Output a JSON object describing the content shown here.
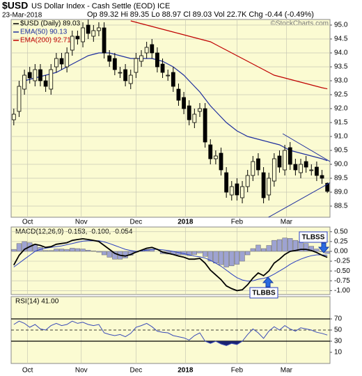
{
  "header": {
    "symbol": "$USD",
    "name": "US Dollar Index - Cash Settle (EOD) ICE",
    "date": "23-Mar-2018",
    "quote": "Op 89.32 Hi 89.35 Lo 88.97 Cl 89.03 Vol 22.7K Chg -0.44 (-0.49%)",
    "credit": "©StockCharts.com"
  },
  "chart_data": [
    {
      "type": "candlestick",
      "name": "$USD (Daily) 89.03",
      "xlim": [
        -0.5,
        59.5
      ],
      "xticks": [
        {
          "value": 2.6,
          "label": "Oct"
        },
        {
          "value": 12.7,
          "label": "Nov"
        },
        {
          "value": 23,
          "label": "Dec"
        },
        {
          "value": 32.3,
          "label": "2018"
        },
        {
          "value": 42,
          "label": "Feb"
        },
        {
          "value": 51.3,
          "label": "Mar"
        }
      ],
      "ylim": [
        88.1,
        95.2
      ],
      "yticks": [
        {
          "value": 95,
          "label": "95.0"
        },
        {
          "value": 94.5,
          "label": "94.5"
        },
        {
          "value": 94,
          "label": "94.0"
        },
        {
          "value": 93.5,
          "label": "93.5"
        },
        {
          "value": 93,
          "label": "93.0"
        },
        {
          "value": 92.5,
          "label": "92.5"
        },
        {
          "value": 92,
          "label": "92.0"
        },
        {
          "value": 91.5,
          "label": "91.5"
        },
        {
          "value": 91,
          "label": "91.0"
        },
        {
          "value": 90.5,
          "label": "90.5"
        },
        {
          "value": 90,
          "label": "90.0"
        },
        {
          "value": 89.5,
          "label": "89.5"
        },
        {
          "value": 89,
          "label": "89.0"
        },
        {
          "value": 88.5,
          "label": "88.5"
        }
      ],
      "grid": true,
      "open": [
        91.6,
        91.9,
        92.7,
        93.3,
        93.0,
        93.4,
        93.0,
        92.7,
        93.5,
        93.8,
        93.5,
        94.1,
        94.6,
        94.4,
        95.0,
        94.6,
        94.8,
        94.9,
        93.9,
        93.8,
        93.3,
        93.4,
        92.9,
        93.3,
        93.7,
        94.0,
        94.3,
        94.0,
        93.6,
        93.2,
        93.3,
        92.7,
        92.4,
        92.1,
        91.5,
        91.9,
        92.0,
        90.7,
        90.2,
        90.4,
        89.7,
        88.9,
        89.3,
        88.8,
        89.2,
        89.6,
        90.2,
        89.7,
        88.9,
        89.4,
        90.3,
        89.8,
        90.6,
        90.0,
        89.7,
        90.1,
        89.8,
        89.9,
        89.6,
        89.32
      ],
      "high": [
        92.0,
        93.0,
        93.4,
        93.5,
        93.6,
        93.6,
        93.2,
        93.6,
        94.0,
        94.0,
        94.2,
        94.8,
        94.8,
        95.1,
        95.2,
        95.0,
        95.1,
        95.1,
        94.1,
        94.0,
        93.5,
        93.6,
        93.4,
        94.0,
        94.1,
        94.4,
        94.5,
        94.2,
        93.8,
        93.4,
        93.5,
        92.9,
        92.6,
        92.3,
        92.0,
        92.2,
        92.2,
        90.9,
        90.5,
        90.6,
        89.9,
        89.4,
        89.5,
        89.4,
        89.8,
        90.3,
        90.4,
        89.9,
        89.7,
        90.4,
        90.5,
        90.7,
        90.8,
        90.2,
        90.2,
        90.3,
        90.0,
        90.1,
        89.8,
        89.35
      ],
      "low": [
        91.4,
        91.7,
        92.5,
        92.9,
        92.8,
        92.8,
        92.6,
        92.5,
        93.3,
        93.4,
        93.3,
        93.9,
        94.3,
        94.2,
        94.5,
        94.4,
        94.6,
        93.8,
        93.5,
        93.2,
        93.1,
        92.8,
        92.7,
        93.1,
        93.5,
        93.8,
        93.8,
        93.3,
        93.1,
        93.0,
        92.6,
        92.1,
        91.8,
        91.4,
        91.3,
        91.7,
        90.6,
        90.0,
        90.0,
        89.6,
        88.8,
        88.7,
        88.7,
        88.6,
        89.0,
        89.4,
        89.6,
        88.6,
        88.7,
        89.2,
        89.7,
        89.6,
        89.8,
        89.6,
        89.5,
        89.7,
        89.6,
        89.4,
        89.3,
        88.97
      ],
      "close": [
        91.8,
        92.8,
        93.2,
        93.1,
        93.4,
        93.0,
        92.8,
        93.4,
        93.8,
        93.6,
        94.0,
        94.6,
        94.5,
        94.9,
        94.7,
        94.8,
        94.9,
        94.0,
        93.7,
        93.4,
        93.3,
        93.0,
        93.2,
        93.8,
        93.9,
        94.2,
        94.0,
        93.5,
        93.3,
        93.2,
        92.8,
        92.3,
        92.0,
        91.6,
        91.8,
        92.0,
        90.8,
        90.2,
        90.3,
        89.8,
        89.0,
        89.2,
        88.9,
        89.2,
        89.6,
        90.1,
        89.8,
        88.8,
        89.5,
        90.2,
        89.9,
        90.5,
        90.0,
        89.8,
        90.0,
        89.9,
        89.8,
        89.6,
        89.5,
        89.03
      ],
      "series": [
        {
          "name": "EMA(50) 90.13",
          "color": "#1f2f9e",
          "values": [
            null,
            null,
            93.0,
            93.05,
            93.1,
            93.15,
            93.2,
            93.25,
            93.3,
            93.4,
            93.5,
            93.6,
            93.7,
            93.8,
            93.9,
            93.95,
            94.0,
            94.0,
            94.0,
            93.95,
            93.9,
            93.85,
            93.8,
            93.8,
            93.8,
            93.8,
            93.8,
            93.75,
            93.7,
            93.6,
            93.5,
            93.35,
            93.2,
            93.0,
            92.8,
            92.6,
            92.35,
            92.1,
            91.9,
            91.7,
            91.5,
            91.35,
            91.2,
            91.1,
            91.0,
            90.95,
            90.9,
            90.85,
            90.8,
            90.75,
            90.7,
            90.6,
            90.5,
            90.45,
            90.4,
            90.35,
            90.3,
            90.25,
            90.2,
            90.13
          ]
        },
        {
          "name": "EMA(200) 92.71",
          "color": "#c00000",
          "values": [
            null,
            null,
            null,
            null,
            null,
            null,
            null,
            null,
            null,
            null,
            null,
            null,
            null,
            null,
            null,
            null,
            null,
            null,
            null,
            null,
            null,
            null,
            95.15,
            95.1,
            95.05,
            95.0,
            94.95,
            94.9,
            94.85,
            94.8,
            94.75,
            94.7,
            94.65,
            94.6,
            94.55,
            94.5,
            94.45,
            94.4,
            94.3,
            94.2,
            94.1,
            94.0,
            93.9,
            93.8,
            93.7,
            93.6,
            93.5,
            93.4,
            93.3,
            93.2,
            93.15,
            93.1,
            93.05,
            93.0,
            92.95,
            92.9,
            92.85,
            92.8,
            92.75,
            92.71
          ]
        }
      ],
      "trendlines": [
        {
          "x": [
            50.6,
            59.5
          ],
          "y": [
            91.1,
            90.1
          ],
          "color": "#1f2f9e"
        },
        {
          "x": [
            47,
            59.5
          ],
          "y": [
            88.0,
            89.34
          ],
          "color": "#1f2f9e"
        }
      ]
    },
    {
      "type": "macd",
      "label": "MACD(12,26,9) -0.153, -0.100, -0.054",
      "ylim": [
        -1.1,
        0.62
      ],
      "yticks": [
        {
          "value": 0.5,
          "label": "0.50"
        },
        {
          "value": 0.25,
          "label": "0.25"
        },
        {
          "value": 0,
          "label": "0.00"
        },
        {
          "value": -0.25,
          "label": "-0.25"
        },
        {
          "value": -0.5,
          "label": "-0.50"
        },
        {
          "value": -0.75,
          "label": "-0.75"
        },
        {
          "value": -1,
          "label": "-1.00"
        }
      ],
      "macd": [
        -0.35,
        -0.1,
        0.05,
        0.12,
        0.18,
        0.15,
        0.1,
        0.12,
        0.18,
        0.2,
        0.22,
        0.28,
        0.3,
        0.32,
        0.3,
        0.28,
        0.25,
        0.15,
        0.05,
        -0.05,
        -0.1,
        -0.12,
        -0.08,
        -0.02,
        0.03,
        0.08,
        0.1,
        0.05,
        -0.02,
        -0.05,
        -0.08,
        -0.12,
        -0.15,
        -0.2,
        -0.2,
        -0.18,
        -0.3,
        -0.48,
        -0.6,
        -0.72,
        -0.88,
        -0.95,
        -1.0,
        -0.98,
        -0.85,
        -0.68,
        -0.55,
        -0.62,
        -0.5,
        -0.3,
        -0.2,
        -0.08,
        0.0,
        0.02,
        0.05,
        0.05,
        0.02,
        -0.03,
        -0.1,
        -0.153
      ],
      "signal": [
        -0.4,
        -0.3,
        -0.2,
        -0.1,
        0.0,
        0.05,
        0.08,
        0.1,
        0.12,
        0.14,
        0.17,
        0.2,
        0.23,
        0.26,
        0.27,
        0.27,
        0.27,
        0.24,
        0.2,
        0.15,
        0.1,
        0.05,
        0.02,
        0.0,
        0.01,
        0.03,
        0.05,
        0.05,
        0.04,
        0.02,
        0.0,
        -0.03,
        -0.06,
        -0.09,
        -0.12,
        -0.14,
        -0.17,
        -0.23,
        -0.3,
        -0.38,
        -0.48,
        -0.58,
        -0.67,
        -0.73,
        -0.76,
        -0.75,
        -0.71,
        -0.69,
        -0.65,
        -0.58,
        -0.5,
        -0.42,
        -0.33,
        -0.26,
        -0.2,
        -0.15,
        -0.11,
        -0.09,
        -0.09,
        -0.1
      ],
      "histogram": [
        0.05,
        0.2,
        0.25,
        0.22,
        0.18,
        0.1,
        0.02,
        0.02,
        0.06,
        0.06,
        0.05,
        0.08,
        0.07,
        0.06,
        0.03,
        0.01,
        -0.02,
        -0.09,
        -0.15,
        -0.2,
        -0.2,
        -0.17,
        -0.1,
        -0.02,
        0.02,
        0.05,
        0.05,
        0.0,
        -0.06,
        -0.07,
        -0.08,
        -0.09,
        -0.09,
        -0.11,
        -0.08,
        -0.04,
        -0.13,
        -0.25,
        -0.3,
        -0.34,
        -0.4,
        -0.37,
        -0.33,
        -0.25,
        -0.09,
        0.07,
        0.16,
        0.07,
        0.15,
        0.28,
        0.3,
        0.34,
        0.33,
        0.28,
        0.25,
        0.2,
        0.13,
        0.06,
        -0.01,
        -0.054
      ],
      "annotations": [
        "TLBSS",
        "TLBBS"
      ]
    },
    {
      "type": "rsi",
      "label": "RSI(14) 41.00",
      "ylim": [
        -10,
        110
      ],
      "yticks": [
        70,
        50,
        30,
        10
      ],
      "reference_lines": [
        {
          "value": 70,
          "style": "solid"
        },
        {
          "value": 50,
          "style": "dashed"
        },
        {
          "value": 30,
          "style": "solid"
        }
      ],
      "values": [
        60,
        66,
        62,
        55,
        60,
        52,
        50,
        58,
        62,
        58,
        60,
        66,
        62,
        64,
        60,
        58,
        60,
        45,
        42,
        40,
        42,
        38,
        44,
        55,
        58,
        62,
        56,
        48,
        46,
        45,
        40,
        38,
        36,
        32,
        40,
        45,
        30,
        26,
        30,
        25,
        22,
        26,
        24,
        30,
        42,
        52,
        45,
        35,
        48,
        56,
        50,
        58,
        52,
        48,
        54,
        52,
        50,
        46,
        44,
        41
      ],
      "color": "#3a4bb8"
    }
  ]
}
